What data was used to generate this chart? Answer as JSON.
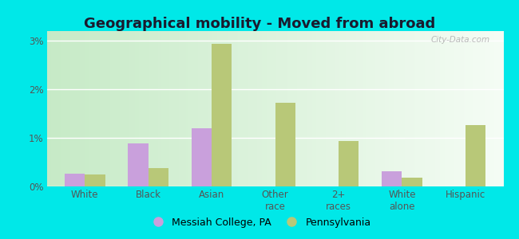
{
  "title": "Geographical mobility - Moved from abroad",
  "categories": [
    "White",
    "Black",
    "Asian",
    "Other\nrace",
    "2+\nraces",
    "White\nalone",
    "Hispanic"
  ],
  "messiah_values": [
    0.27,
    0.88,
    1.2,
    0.0,
    0.0,
    0.32,
    0.0
  ],
  "pennsylvania_values": [
    0.25,
    0.37,
    2.93,
    1.72,
    0.93,
    0.18,
    1.27
  ],
  "messiah_color": "#c9a0dc",
  "pennsylvania_color": "#b8c878",
  "ylim": [
    0,
    3.2
  ],
  "yticks": [
    0.0,
    1.0,
    2.0,
    3.0
  ],
  "ytick_labels": [
    "0%",
    "1%",
    "2%",
    "3%"
  ],
  "outer_bg": "#00e8e8",
  "legend_messiah": "Messiah College, PA",
  "legend_pennsylvania": "Pennsylvania",
  "bar_width": 0.32,
  "title_fontsize": 13,
  "tick_fontsize": 8.5,
  "watermark": "City-Data.com"
}
